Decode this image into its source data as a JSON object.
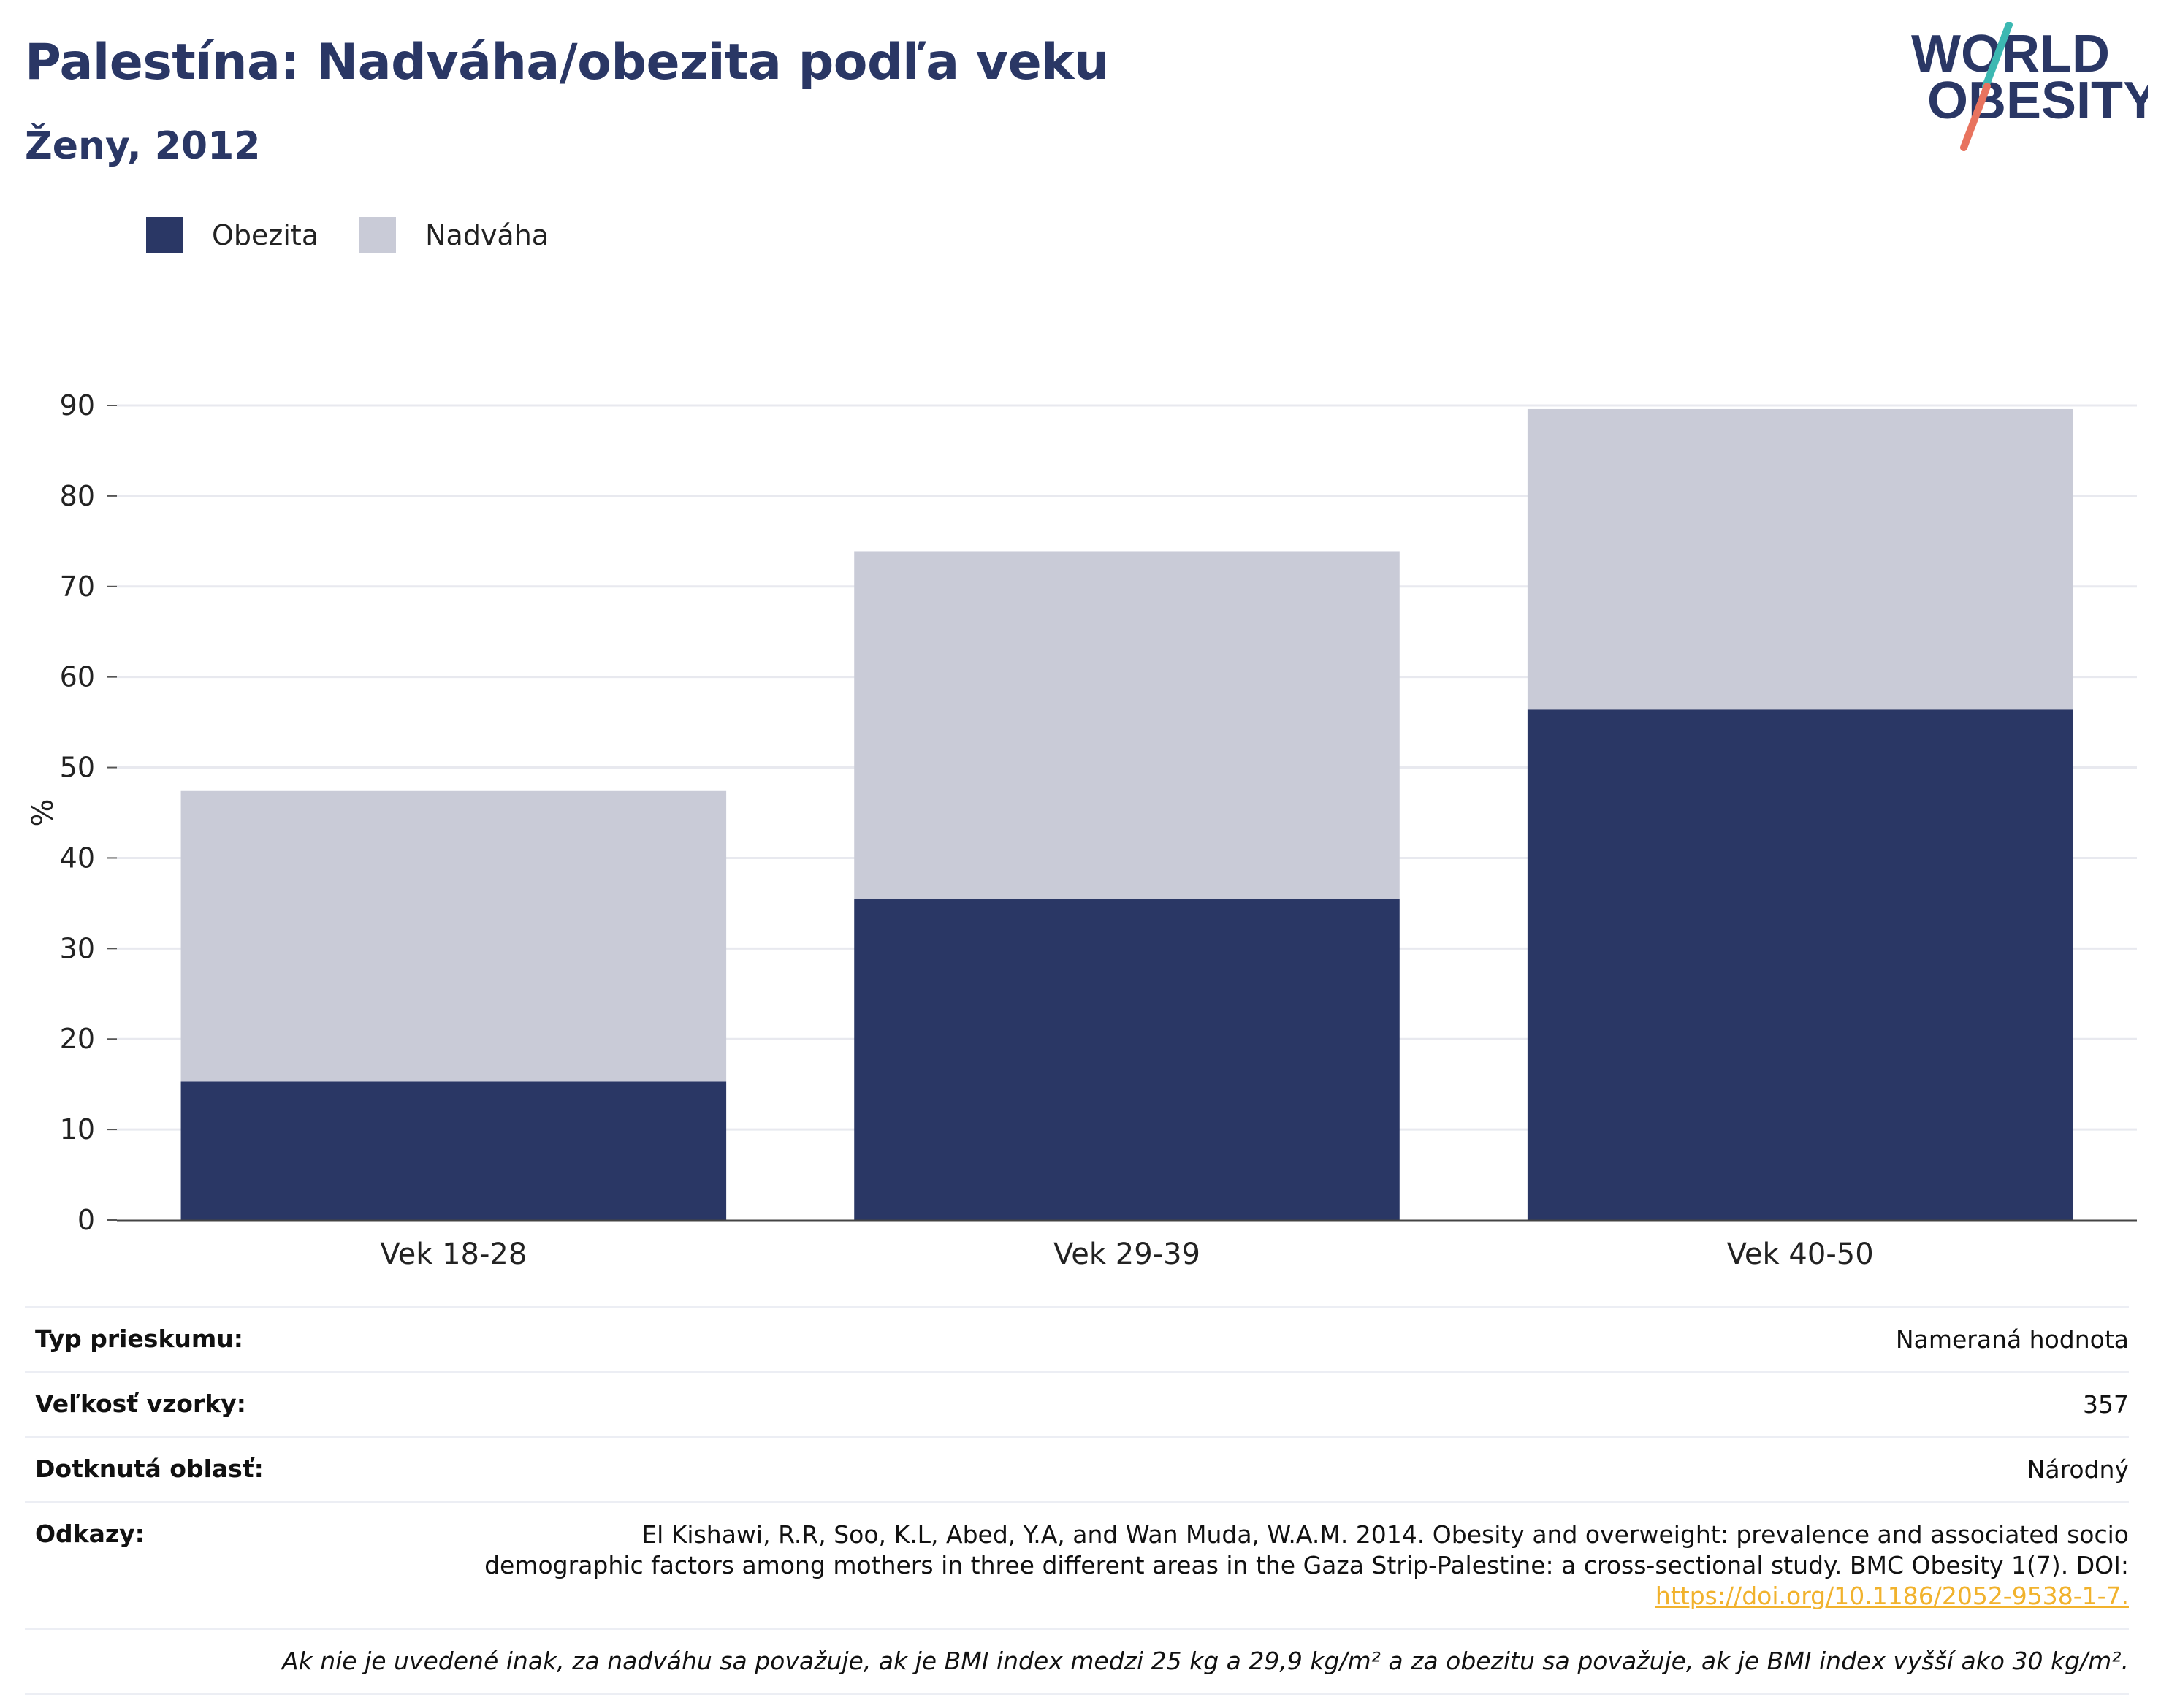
{
  "header": {
    "title": "Palestína: Nadváha/obezita podľa veku",
    "subtitle": "Ženy, 2012",
    "logo_line1": "WORLD",
    "logo_line2": "OBESITY"
  },
  "legend": [
    {
      "label": "Obezita",
      "color": "#2a3765"
    },
    {
      "label": "Nadváha",
      "color": "#c9cbd7"
    }
  ],
  "chart_data": {
    "type": "bar",
    "stacked": true,
    "categories": [
      "Vek 18-28",
      "Vek 29-39",
      "Vek 40-50"
    ],
    "series": [
      {
        "name": "Obezita",
        "color": "#2a3765",
        "values": [
          15.3,
          35.5,
          56.4
        ]
      },
      {
        "name": "Nadváha",
        "color": "#c9cbd7",
        "values": [
          32.1,
          38.4,
          33.2
        ]
      }
    ],
    "ylabel": "%",
    "ylim": [
      0,
      90
    ],
    "yticks": [
      0,
      10,
      20,
      30,
      40,
      50,
      60,
      70,
      80,
      90
    ],
    "grid": true,
    "legend_position": "top-left"
  },
  "info": {
    "survey_type_label": "Typ prieskumu:",
    "survey_type_value": "Nameraná hodnota",
    "sample_size_label": "Veľkosť vzorky:",
    "sample_size_value": "357",
    "area_label": "Dotknutá oblasť:",
    "area_value": "Národný",
    "references_label": "Odkazy:",
    "references_line1": "El Kishawi, R.R, Soo, K.L, Abed, Y.A, and Wan Muda, W.A.M. 2014. Obesity and overweight: prevalence and associated socio",
    "references_line2": "demographic factors among mothers in three different areas in the Gaza Strip-Palestine: a cross-sectional study. BMC Obesity 1(7). DOI:",
    "references_link": "https://doi.org/10.1186/2052-9538-1-7.",
    "footnote": "Ak nie je uvedené inak, za nadváhu sa považuje, ak je BMI index medzi 25 kg a 29,9 kg/m² a za obezitu sa považuje, ak je BMI index vyšší ako 30 kg/m²."
  },
  "colors": {
    "brand_navy": "#2a3765",
    "overweight_grey": "#c9cbd7",
    "accent_teal": "#3cb8b2",
    "accent_coral": "#e8735e",
    "link_gold": "#f1b22d"
  }
}
